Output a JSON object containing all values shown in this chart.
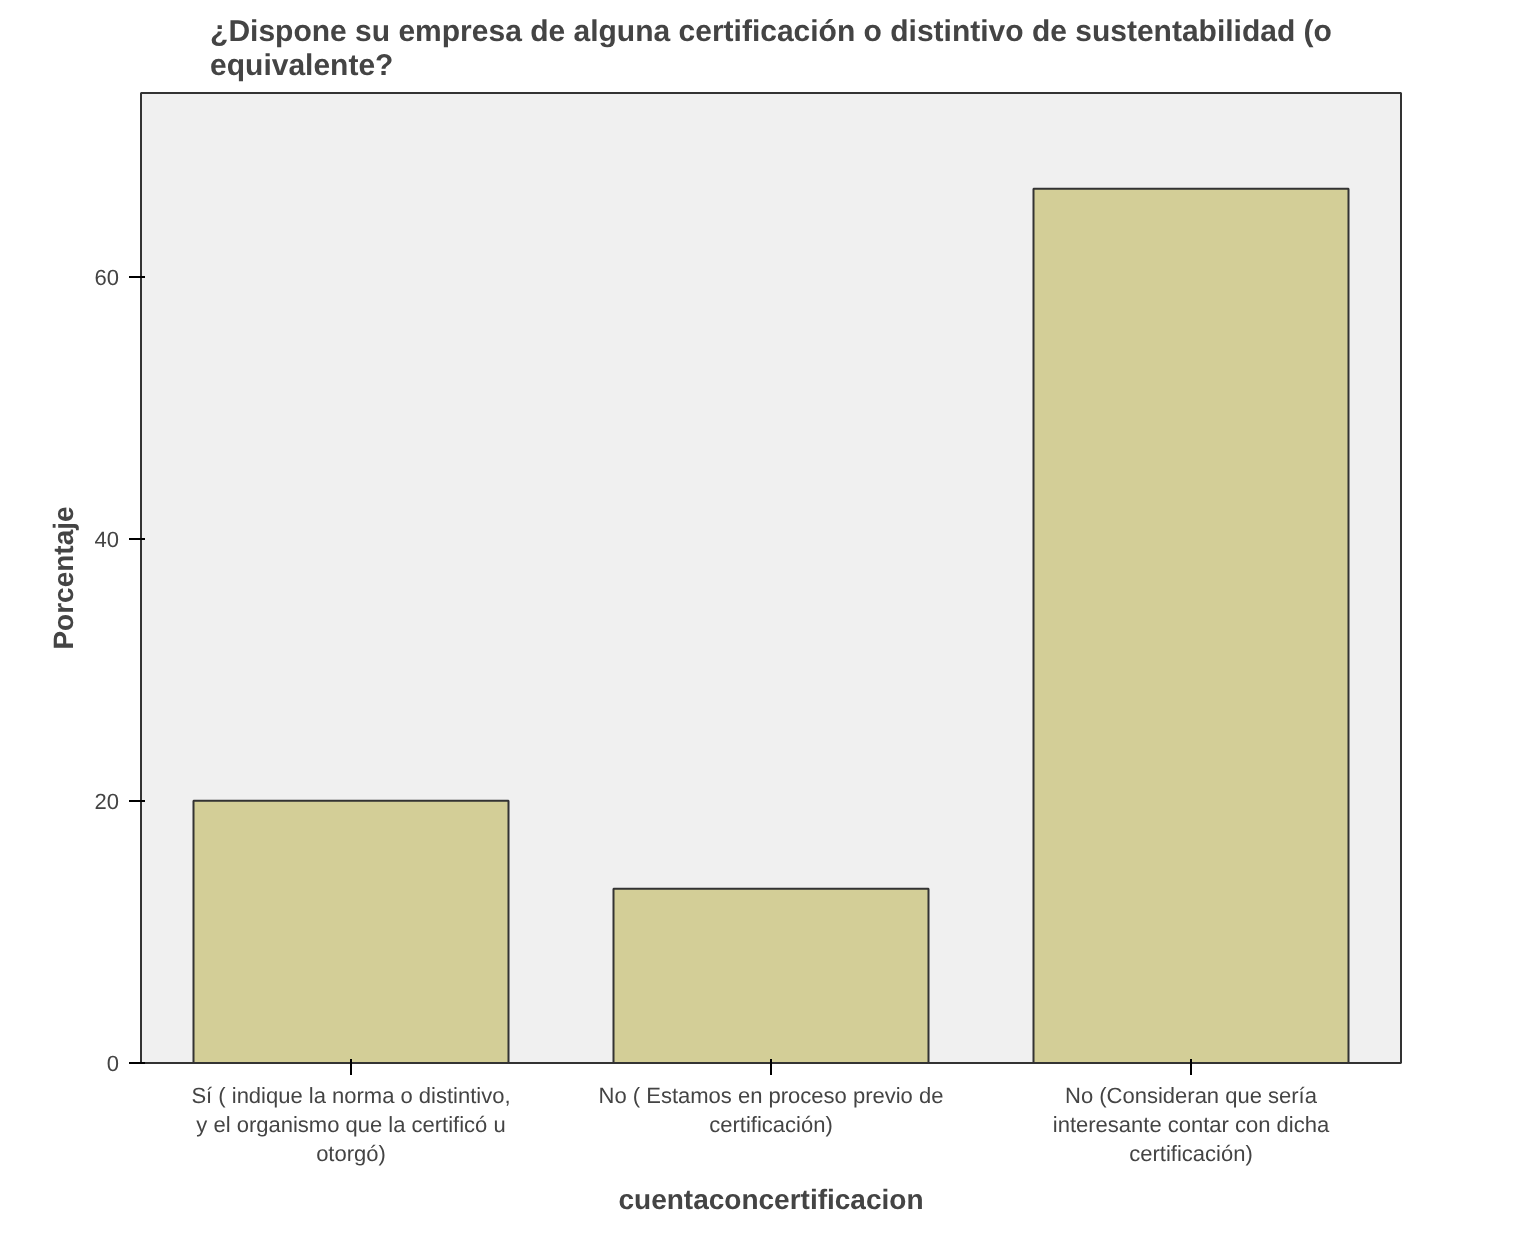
{
  "chart_data": {
    "type": "bar",
    "title": "¿Dispone su empresa de alguna certificación o distintivo de sustentabilidad (o equivalente?",
    "xlabel": "cuentaconcertificacion",
    "ylabel": "Porcentaje",
    "categories": [
      "Sí ( indique la norma o distintivo, y el organismo que la certificó u otorgó)",
      "No ( Estamos en proceso previo de certificación)",
      "No (Consideran que sería interesante contar con dicha certificación)"
    ],
    "values": [
      20,
      13.3,
      66.7
    ],
    "color": "#d3ce97",
    "ylim": [
      0,
      74
    ],
    "yticks": [
      0,
      20,
      40,
      60
    ],
    "grid": false
  }
}
